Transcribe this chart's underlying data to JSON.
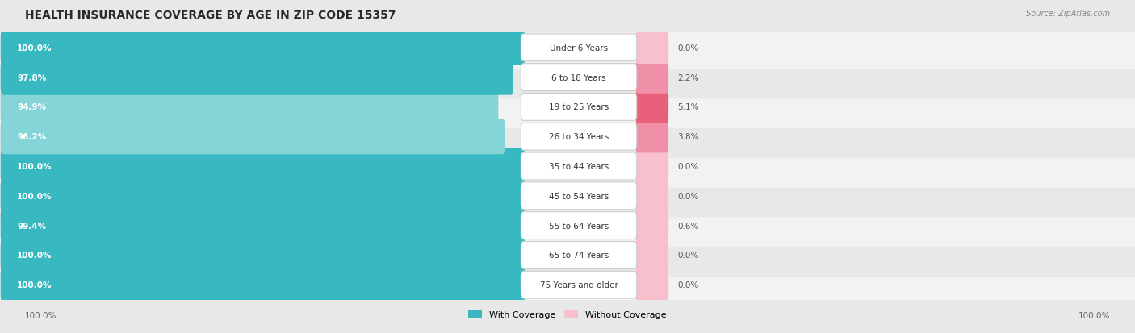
{
  "title": "HEALTH INSURANCE COVERAGE BY AGE IN ZIP CODE 15357",
  "source": "Source: ZipAtlas.com",
  "categories": [
    "Under 6 Years",
    "6 to 18 Years",
    "19 to 25 Years",
    "26 to 34 Years",
    "35 to 44 Years",
    "45 to 54 Years",
    "55 to 64 Years",
    "65 to 74 Years",
    "75 Years and older"
  ],
  "with_coverage": [
    100.0,
    97.8,
    94.9,
    96.2,
    100.0,
    100.0,
    99.4,
    100.0,
    100.0
  ],
  "without_coverage": [
    0.0,
    2.2,
    5.1,
    3.8,
    0.0,
    0.0,
    0.6,
    0.0,
    0.0
  ],
  "color_with": "#38b8c0",
  "color_with_light": "#85d4d8",
  "color_without_dark": "#e8607a",
  "color_without_med": "#f090a8",
  "color_without_light": "#f8c0cc",
  "bg_color": "#e8e8e8",
  "row_bg": "#f2f2f2",
  "row_bg_alt": "#e8e8e8",
  "title_fontsize": 10,
  "label_fontsize": 8,
  "tick_fontsize": 7.5,
  "legend_fontsize": 8
}
